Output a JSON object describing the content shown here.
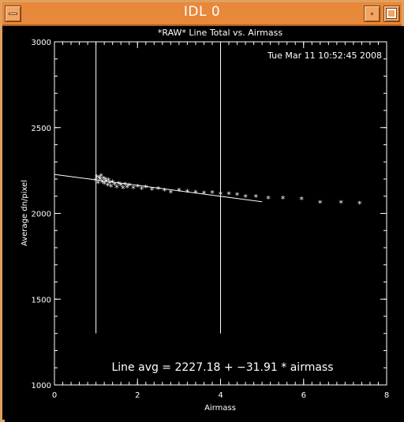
{
  "window": {
    "title": "IDL 0"
  },
  "chart_data": {
    "type": "scatter",
    "title": "*RAW* Line Total vs. Airmass",
    "timestamp": "Tue Mar 11 10:52:45 2008",
    "xlabel": "Airmass",
    "ylabel": "Average dn/pixel",
    "xlim": [
      0,
      8
    ],
    "ylim": [
      1000,
      3000
    ],
    "xticks": [
      "0",
      "2",
      "4",
      "6",
      "8"
    ],
    "yticks": [
      "1000",
      "1500",
      "2000",
      "2500",
      "3000"
    ],
    "vlines": [
      1.0,
      4.0
    ],
    "fit": {
      "intercept": 2227.18,
      "slope": -31.91,
      "x_range": [
        0,
        5
      ]
    },
    "annotation": "Line avg = 2227.18 + −31.91 * airmass",
    "series": [
      {
        "x": [
          1.0,
          1.02,
          1.05,
          1.08,
          1.1,
          1.12,
          1.15,
          1.18,
          1.2,
          1.22,
          1.25,
          1.28,
          1.3,
          1.33,
          1.36,
          1.4,
          1.45,
          1.5,
          1.55,
          1.6,
          1.65,
          1.7,
          1.75,
          1.8,
          1.9,
          2.0,
          2.1,
          2.2,
          2.35,
          2.5,
          2.65,
          2.8,
          3.0,
          3.2,
          3.4,
          3.6,
          3.8,
          4.0,
          4.2,
          4.4,
          4.6,
          4.85,
          5.15,
          5.5,
          5.95,
          6.4,
          6.9,
          7.35
        ],
        "y": [
          2190,
          2210,
          2175,
          2205,
          2195,
          2215,
          2180,
          2200,
          2170,
          2195,
          2185,
          2160,
          2190,
          2175,
          2155,
          2180,
          2165,
          2150,
          2170,
          2160,
          2145,
          2165,
          2150,
          2160,
          2145,
          2155,
          2140,
          2150,
          2135,
          2140,
          2130,
          2120,
          2130,
          2125,
          2120,
          2115,
          2118,
          2110,
          2110,
          2105,
          2095,
          2095,
          2085,
          2085,
          2080,
          2060,
          2060,
          2055
        ]
      }
    ]
  }
}
